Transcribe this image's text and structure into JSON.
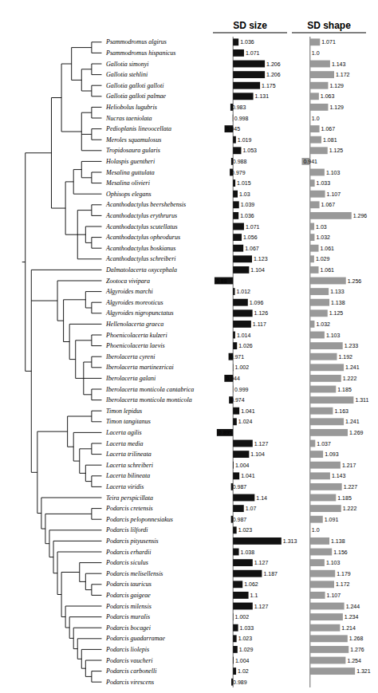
{
  "chart_data": [
    {
      "type": "bar",
      "orientation": "horizontal",
      "title": "SD size",
      "categories": [
        "Psammodromus algirus",
        "Psammodromus hispanicus",
        "Gallotia simonyi",
        "Gallotia stehlini",
        "Gallotia galloti galloti",
        "Gallotia galloti palmae",
        "Heliobolus lugubris",
        "Nucras taeniolata",
        "Pedioplanis lineoocellata",
        "Meroles squamulosus",
        "Tropidosaura gularis",
        "Holaspis guentheri",
        "Mesalina guttulata",
        "Mesalina olivieri",
        "Ophisops elegans",
        "Acanthodactylus beershebensis",
        "Acanthodactylus erythrurus",
        "Acanthodactylus scutellatus",
        "Acanthodactylus opheodurus",
        "Acanthodactylus boskianus",
        "Acanthodactylus schreiberi",
        "Dalmatolacerta oxycephala",
        "Zootoca vivipara",
        "Algyroides marchi",
        "Algyroides moreoticus",
        "Algyroides nigropunctatus",
        "Hellenolacerta graeca",
        "Phoenicolacerta kulzeri",
        "Phoenicolacerta laevis",
        "Iberolacerta cyreni",
        "Iberolacerta martinezricai",
        "Iberolacerta galani",
        "Iberolacerta monticola cantabrica",
        "Iberolacerta monticola monticola",
        "Timon lepidus",
        "Timon tangitanus",
        "Lacerta agilis",
        "Lacerta media",
        "Lacerta trilineata",
        "Lacerta schreiberi",
        "Lacerta bilineata",
        "Lacerta viridis",
        "Teira perspicillata",
        "Podarcis cretensis",
        "Podarcis peloponnesiakus",
        "Podarcis lilfordi",
        "Podarcis pityusensis",
        "Podarcis erhardii",
        "Podarcis siculus",
        "Podarcis melisellensis",
        "Podarcis tauricus",
        "Podarcis gaigeae",
        "Podarcis milensis",
        "Podarcis muralis",
        "Podarcis bocagei",
        "Podarcis guadarramae",
        "Podarcis liolepis",
        "Podarcis vaucheri",
        "Podarcis carbonelli",
        "Podarcis virescens"
      ],
      "values": [
        1.036,
        1.071,
        1.206,
        1.206,
        1.175,
        1.131,
        0.983,
        0.998,
        0.945,
        1.019,
        1.053,
        0.988,
        0.979,
        1.015,
        1.03,
        1.039,
        1.036,
        1.071,
        1.056,
        1.067,
        1.123,
        1.104,
        0.88,
        1.012,
        1.096,
        1.126,
        1.117,
        1.014,
        1.026,
        0.971,
        1.002,
        0.944,
        0.999,
        0.974,
        1.041,
        1.024,
        0.895,
        1.127,
        1.104,
        1.004,
        1.041,
        0.987,
        1.14,
        1.07,
        0.987,
        1.023,
        1.313,
        1.038,
        1.127,
        1.187,
        1.062,
        1.1,
        1.127,
        1.002,
        1.033,
        1.023,
        1.029,
        1.004,
        1.02,
        0.989
      ],
      "color": "#111111",
      "baseline": 1.0,
      "xlim": [
        0.87,
        1.35
      ],
      "data_labels": true,
      "tick_labels": false,
      "grid": false
    },
    {
      "type": "bar",
      "orientation": "horizontal",
      "title": "SD shape",
      "categories": [
        "Psammodromus algirus",
        "Psammodromus hispanicus",
        "Gallotia simonyi",
        "Gallotia stehlini",
        "Gallotia galloti galloti",
        "Gallotia galloti palmae",
        "Heliobolus lugubris",
        "Nucras taeniolata",
        "Pedioplanis lineoocellata",
        "Meroles squamulosus",
        "Tropidosaura gularis",
        "Holaspis guentheri",
        "Mesalina guttulata",
        "Mesalina olivieri",
        "Ophisops elegans",
        "Acanthodactylus beershebensis",
        "Acanthodactylus erythrurus",
        "Acanthodactylus scutellatus",
        "Acanthodactylus opheodurus",
        "Acanthodactylus boskianus",
        "Acanthodactylus schreiberi",
        "Dalmatolacerta oxycephala",
        "Zootoca vivipara",
        "Algyroides marchi",
        "Algyroides moreoticus",
        "Algyroides nigropunctatus",
        "Hellenolacerta graeca",
        "Phoenicolacerta kulzeri",
        "Phoenicolacerta laevis",
        "Iberolacerta cyreni",
        "Iberolacerta martinezricai",
        "Iberolacerta galani",
        "Iberolacerta monticola cantabrica",
        "Iberolacerta monticola monticola",
        "Timon lepidus",
        "Timon tangitanus",
        "Lacerta agilis",
        "Lacerta media",
        "Lacerta trilineata",
        "Lacerta schreiberi",
        "Lacerta bilineata",
        "Lacerta viridis",
        "Teira perspicillata",
        "Podarcis cretensis",
        "Podarcis peloponnesiakus",
        "Podarcis lilfordi",
        "Podarcis pityusensis",
        "Podarcis erhardii",
        "Podarcis siculus",
        "Podarcis melisellensis",
        "Podarcis tauricus",
        "Podarcis gaigeae",
        "Podarcis milensis",
        "Podarcis muralis",
        "Podarcis bocagei",
        "Podarcis guadarramae",
        "Podarcis liolepis",
        "Podarcis vaucheri",
        "Podarcis carbonelli"
      ],
      "values": [
        1.071,
        1.0,
        1.143,
        1.172,
        1.129,
        1.063,
        1.129,
        1.0,
        1.067,
        1.081,
        1.125,
        0.941,
        1.103,
        1.033,
        1.107,
        1.067,
        1.296,
        1.03,
        1.032,
        1.061,
        1.029,
        1.061,
        1.256,
        1.133,
        1.138,
        1.125,
        1.032,
        1.103,
        1.233,
        1.192,
        1.241,
        1.222,
        1.185,
        1.311,
        1.163,
        1.241,
        1.269,
        1.037,
        1.093,
        1.217,
        1.143,
        1.227,
        1.185,
        1.222,
        1.091,
        1.0,
        1.138,
        1.156,
        1.103,
        1.179,
        1.172,
        1.107,
        1.244,
        1.234,
        1.214,
        1.268,
        1.276,
        1.254,
        1.321
      ],
      "value_labels": [
        "1.071",
        "1.0",
        "1.143",
        "1.172",
        "1.129",
        "1.063",
        "1.129",
        "1.0",
        "1.067",
        "1.081",
        "1.125",
        "0.941",
        "1.103",
        "1.033",
        "1.107",
        "1.067",
        "1.296",
        "1.03",
        "1.032",
        "1.061",
        "1.029",
        "1.061",
        "1.256",
        "1.133",
        "1.138",
        "1.125",
        "1.032",
        "1.103",
        "1.233",
        "1.192",
        "1.241",
        "1.222",
        "1.185",
        "1.311",
        "1.163",
        "1.241",
        "1.269",
        "1.037",
        "1.093",
        "1.217",
        "1.143",
        "1.227",
        "1.185",
        "1.222",
        "1.091",
        "1.0",
        "1.138",
        "1.156",
        "1.103",
        "1.179",
        "1.172",
        "1.107",
        "1.244",
        "1.234",
        "1.214",
        "1.268",
        "1.276",
        "1.254",
        "1.321"
      ],
      "color": "#999999",
      "baseline": 1.0,
      "xlim": [
        0.87,
        1.4
      ],
      "data_labels": true,
      "tick_labels": false,
      "grid": false
    }
  ]
}
